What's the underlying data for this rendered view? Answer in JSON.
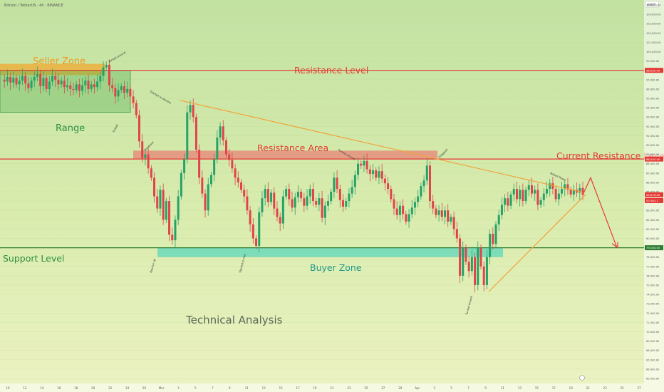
{
  "header": {
    "symbol_text": "Bitcoin / TetherUS · 4h · BINANCE"
  },
  "price_axis": {
    "unit_label": "USDT",
    "ticks": [
      105000,
      104000,
      103000,
      102000,
      101000,
      100000,
      99000,
      98000,
      97000,
      96000,
      95000,
      94000,
      93000,
      92000,
      91000,
      90000,
      89000,
      88000,
      87000,
      86000,
      85000,
      84000,
      83000,
      82000,
      81000,
      80000,
      79000,
      78000,
      77000,
      76000,
      75000,
      74000,
      73000,
      72000,
      71000,
      70000,
      69000,
      68000,
      67000,
      66000,
      65000
    ]
  },
  "time_axis": {
    "labels": [
      "10",
      "12",
      "14",
      "16",
      "18",
      "20",
      "22",
      "24",
      "26",
      "Mar",
      "3",
      "5",
      "7",
      "9",
      "11",
      "13",
      "15",
      "17",
      "19",
      "21",
      "23",
      "25",
      "27",
      "29",
      "Apr",
      "3",
      "5",
      "7",
      "9",
      "11",
      "13",
      "15",
      "17",
      "19",
      "21",
      "23",
      "25",
      "27"
    ]
  },
  "price_tags": [
    {
      "text": "98,000.00",
      "value": 98000,
      "color": "#e53935"
    },
    {
      "text": "88,500.00",
      "value": 88500,
      "color": "#e53935"
    },
    {
      "text": "84,676.85",
      "value": 84676.85,
      "color": "#e53935"
    },
    {
      "text": "02:58:11",
      "value": 84050,
      "color": "#e53935"
    },
    {
      "text": "79,000.00",
      "value": 79000,
      "color": "#2e7d32"
    }
  ],
  "annotations": {
    "seller_zone": "Seller Zone",
    "range": "Range",
    "resistance_level": "Resistance Level",
    "resistance_area": "Resistance Area",
    "current_resistance_level": "Current Resistance Level",
    "support_level": "Support Level",
    "buyer_zone": "Buyer Zone",
    "technical_analysis": "Technical Analysis",
    "small_notes": [
      "Turned around",
      "Exited",
      "Breakout",
      "Bounce up",
      "Started to decline",
      "Turned around",
      "Dropped",
      "Started to rise",
      "Turned around",
      "Rolled Down"
    ]
  },
  "colors": {
    "resistance_line": "#e53935",
    "support_line": "#2e7d32",
    "candle_up": "#26a269",
    "candle_down": "#e0444a",
    "seller_zone_fill": "#f0a830",
    "range_fill": "#4caf50",
    "resistance_area_fill": "#ef6b6b",
    "buyer_zone_fill": "#30d0c0",
    "trendline": "#f2a33a"
  },
  "chart_data": {
    "type": "candlestick",
    "title": "Bitcoin / TetherUS · 4h · BINANCE",
    "ylabel": "USDT",
    "ylim": [
      65000,
      105500
    ],
    "levels": [
      {
        "name": "Resistance Level",
        "value": 98000
      },
      {
        "name": "Current Resistance Level",
        "value": 88500
      },
      {
        "name": "Support Level",
        "value": 79000
      }
    ],
    "zones": [
      {
        "name": "Seller Zone",
        "from": 97500,
        "to": 98700
      },
      {
        "name": "Range",
        "from": 93500,
        "to": 98000
      },
      {
        "name": "Resistance Area",
        "from": 88500,
        "to": 89400
      },
      {
        "name": "Buyer Zone",
        "from": 78000,
        "to": 79000
      }
    ],
    "series": [
      {
        "values": [
          97000,
          96800,
          97300,
          96700,
          97200,
          96500,
          96900,
          97400,
          96600,
          96100,
          96900,
          97300,
          97600,
          96300,
          97200,
          96000,
          96800,
          97400,
          97000,
          96500,
          96900,
          96200,
          96400,
          96000,
          95900,
          96500,
          95800,
          96400,
          96900,
          96000,
          96500,
          96200,
          96800,
          97400,
          98300,
          98600,
          96400,
          96100,
          95200,
          95900,
          96300,
          95600,
          96000,
          95200,
          94500,
          93200,
          90400,
          88600,
          89000,
          87500,
          86500,
          84500,
          83200,
          85200,
          82000,
          84000,
          80400,
          79800,
          82000,
          84500,
          87000,
          88500,
          93500,
          94300,
          93000,
          89500,
          86500,
          84800,
          83000,
          85800,
          86800,
          88500,
          90800,
          92000,
          90500,
          89000,
          88400,
          87500,
          86500,
          86000,
          85200,
          84500,
          83000,
          81500,
          80000,
          79200,
          82800,
          84300,
          85300,
          83900,
          84900,
          83200,
          82300,
          81600,
          84500,
          85300,
          84200,
          83300,
          84400,
          85000,
          84300,
          83500,
          84500,
          85300,
          84000,
          83600,
          84300,
          82200,
          83500,
          84000,
          85000,
          86500,
          85300,
          84100,
          83400,
          84000,
          84800,
          85500,
          86800,
          88000,
          87800,
          88300,
          87400,
          86900,
          87300,
          86500,
          87200,
          86400,
          85900,
          85300,
          84200,
          83200,
          82500,
          83500,
          82600,
          81800,
          82600,
          83300,
          83900,
          84500,
          85600,
          86200,
          87800,
          84000,
          83200,
          82500,
          83000,
          82300,
          83000,
          81800,
          82300,
          81000,
          80000,
          76000,
          79000,
          77500,
          76500,
          78000,
          75000,
          79000,
          77000,
          75000,
          78000,
          80500,
          79400,
          81500,
          82500,
          83600,
          84300,
          83500,
          84700,
          85300,
          84200,
          85200,
          84000,
          85200,
          85700,
          84800,
          85200,
          83600,
          84100,
          84800,
          85300,
          85900,
          85300,
          84200,
          84800,
          85300,
          85800,
          85200,
          84700,
          85200,
          84900,
          85400,
          84676.85
        ]
      }
    ],
    "projection": [
      84676.85,
      86500,
      79000
    ],
    "x_ticks": [
      "10",
      "12",
      "14",
      "16",
      "18",
      "20",
      "22",
      "24",
      "26",
      "Mar",
      "3",
      "5",
      "7",
      "9",
      "11",
      "13",
      "15",
      "17",
      "19",
      "21",
      "23",
      "25",
      "27",
      "29",
      "Apr",
      "3",
      "5",
      "7",
      "9",
      "11",
      "13",
      "15",
      "17",
      "19",
      "21",
      "23",
      "25",
      "27"
    ]
  }
}
